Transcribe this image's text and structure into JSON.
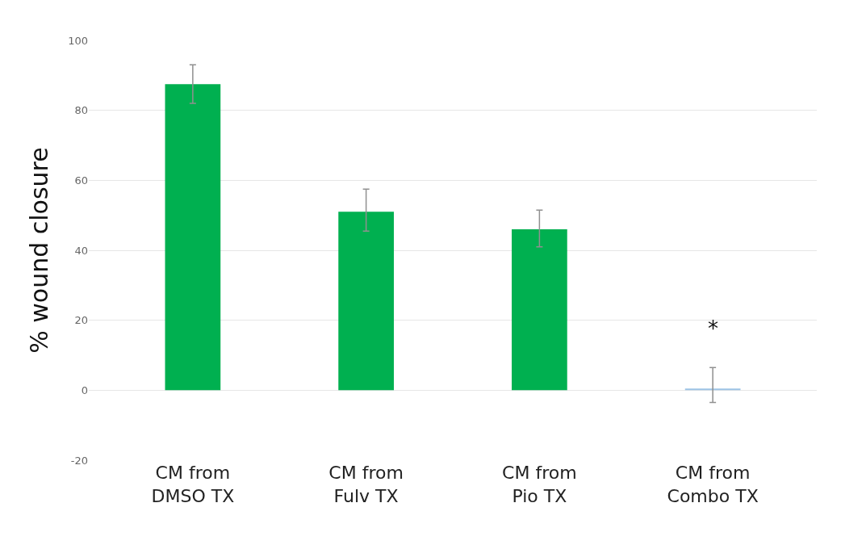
{
  "chart_data": {
    "type": "bar",
    "ylabel": "% wound closure",
    "categories": [
      "CM from\nDMSO TX",
      "CM from\nFulv TX",
      "CM from\nPio TX",
      "CM from\nCombo TX"
    ],
    "values": [
      87.5,
      51,
      46,
      0.5
    ],
    "colors": [
      "#00b050",
      "#00b050",
      "#00b050",
      "#9dc3e6"
    ],
    "errors": [
      [
        82,
        93
      ],
      [
        45.5,
        57.5
      ],
      [
        41,
        51.5
      ],
      [
        -3.5,
        6.5
      ]
    ],
    "ylim": [
      -20,
      100
    ],
    "yticks": [
      -20,
      0,
      20,
      40,
      60,
      80,
      100
    ],
    "grid": "y",
    "annotations": [
      "*"
    ]
  }
}
